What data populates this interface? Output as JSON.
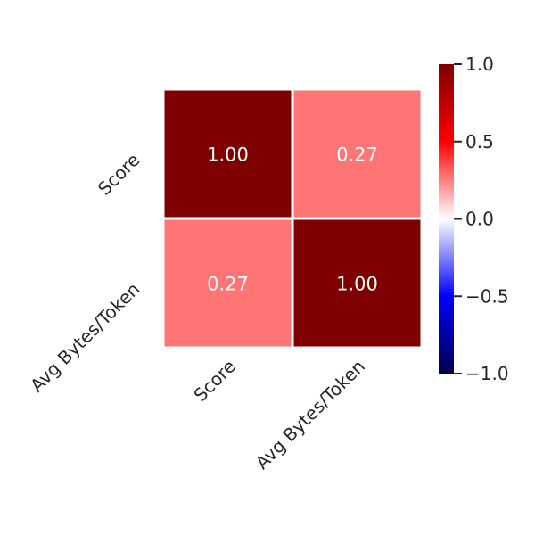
{
  "chart_data": {
    "type": "heatmap",
    "title": "",
    "row_labels": [
      "Score",
      "Avg Bytes/Token"
    ],
    "col_labels": [
      "Score",
      "Avg Bytes/Token"
    ],
    "values": [
      [
        1.0,
        0.27
      ],
      [
        0.27,
        1.0
      ]
    ],
    "cell_labels": [
      [
        "1.00",
        "0.27"
      ],
      [
        "0.27",
        "1.00"
      ]
    ],
    "colorbar": {
      "colormap": "seismic",
      "range": [
        -1.0,
        1.0
      ],
      "ticks": [
        1.0,
        0.5,
        0.0,
        -0.5,
        -1.0
      ],
      "tick_labels": [
        "1.0",
        "0.5",
        "0.0",
        "−0.5",
        "−1.0"
      ]
    },
    "grid": false,
    "colors": {
      "max": "#7f0000",
      "mid": "#ffffff",
      "min": "#00004c",
      "cell_text": "#ffffff",
      "label_text": "#262626"
    }
  }
}
